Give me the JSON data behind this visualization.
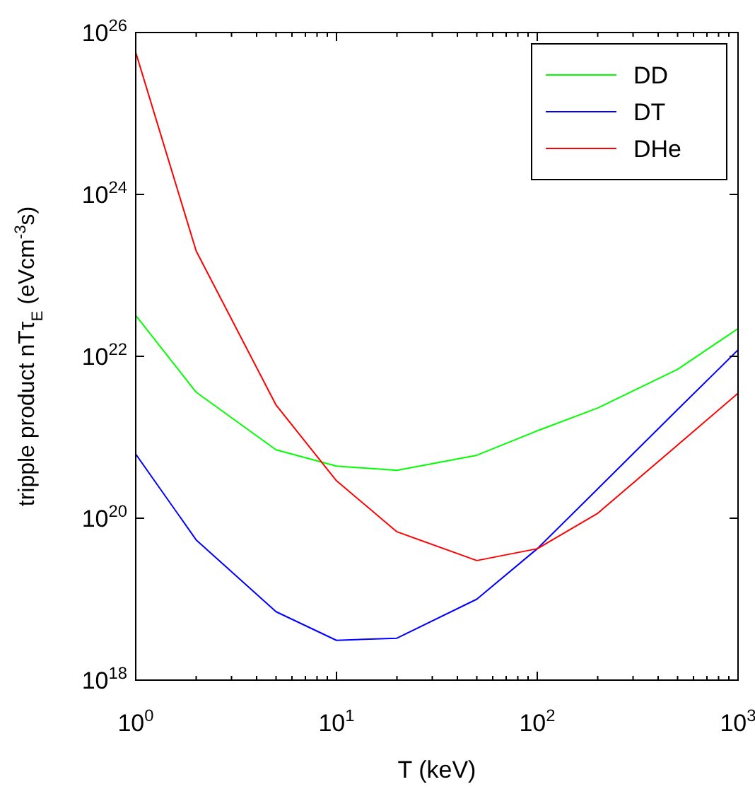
{
  "chart_data": {
    "type": "line",
    "xlabel": "T (keV)",
    "ylabel": "tripple product nTτ$_{E}$ (eVcm$^{-3}$s)",
    "log": "xy",
    "legend": "top right",
    "grid": false,
    "x": [
      1,
      2,
      5,
      10,
      20,
      50,
      100,
      200,
      500,
      1000
    ],
    "xlim": [
      1,
      1000
    ],
    "ylim": [
      1e+18,
      1e+26
    ],
    "xticks": [
      {
        "value": 1,
        "label": "10$^{0}$"
      },
      {
        "value": 2,
        "label": null
      },
      {
        "value": 3,
        "label": null
      },
      {
        "value": 4,
        "label": null
      },
      {
        "value": 5,
        "label": null
      },
      {
        "value": 6,
        "label": null
      },
      {
        "value": 7,
        "label": null
      },
      {
        "value": 8,
        "label": null
      },
      {
        "value": 9,
        "label": null
      },
      {
        "value": 10,
        "label": "10$^{1}$"
      },
      {
        "value": 20,
        "label": null
      },
      {
        "value": 30,
        "label": null
      },
      {
        "value": 40,
        "label": null
      },
      {
        "value": 50,
        "label": null
      },
      {
        "value": 60,
        "label": null
      },
      {
        "value": 70,
        "label": null
      },
      {
        "value": 80,
        "label": null
      },
      {
        "value": 90,
        "label": null
      },
      {
        "value": 100,
        "label": "10$^{2}$"
      },
      {
        "value": 200,
        "label": null
      },
      {
        "value": 300,
        "label": null
      },
      {
        "value": 400,
        "label": null
      },
      {
        "value": 500,
        "label": null
      },
      {
        "value": 600,
        "label": null
      },
      {
        "value": 700,
        "label": null
      },
      {
        "value": 800,
        "label": null
      },
      {
        "value": 900,
        "label": null
      },
      {
        "value": 1000,
        "label": "10$^{3}$"
      }
    ],
    "yticks": [
      {
        "value": 1e+18,
        "label": "10$^{18}$"
      },
      {
        "value": 1e+20,
        "label": "10$^{20}$"
      },
      {
        "value": 1e+22,
        "label": "10$^{22}$"
      },
      {
        "value": 1e+24,
        "label": "10$^{24}$"
      },
      {
        "value": 1e+26,
        "label": "10$^{26}$"
      }
    ],
    "series": [
      {
        "name": "DD",
        "color": "#00ff00",
        "values": [
          3.2e+22,
          3.6e+21,
          7e+20,
          4.4e+20,
          3.9e+20,
          6e+20,
          1.2e+21,
          2.3e+21,
          6.9e+21,
          2.2e+22
        ]
      },
      {
        "name": "DT",
        "color": "#0000ff",
        "values": [
          6.2e+20,
          5.4e+19,
          7e+18,
          3.1e+18,
          3.3e+18,
          1e+19,
          4.2e+19,
          2.3e+20,
          2.2e+21,
          1.2e+22
        ]
      },
      {
        "name": "DHe",
        "color": "#ff0000",
        "values": [
          5.7e+25,
          2e+23,
          2.5e+21,
          2.9e+20,
          6.8e+19,
          3e+19,
          4.2e+19,
          1.15e+20,
          8e+20,
          3.5e+21
        ]
      }
    ]
  }
}
